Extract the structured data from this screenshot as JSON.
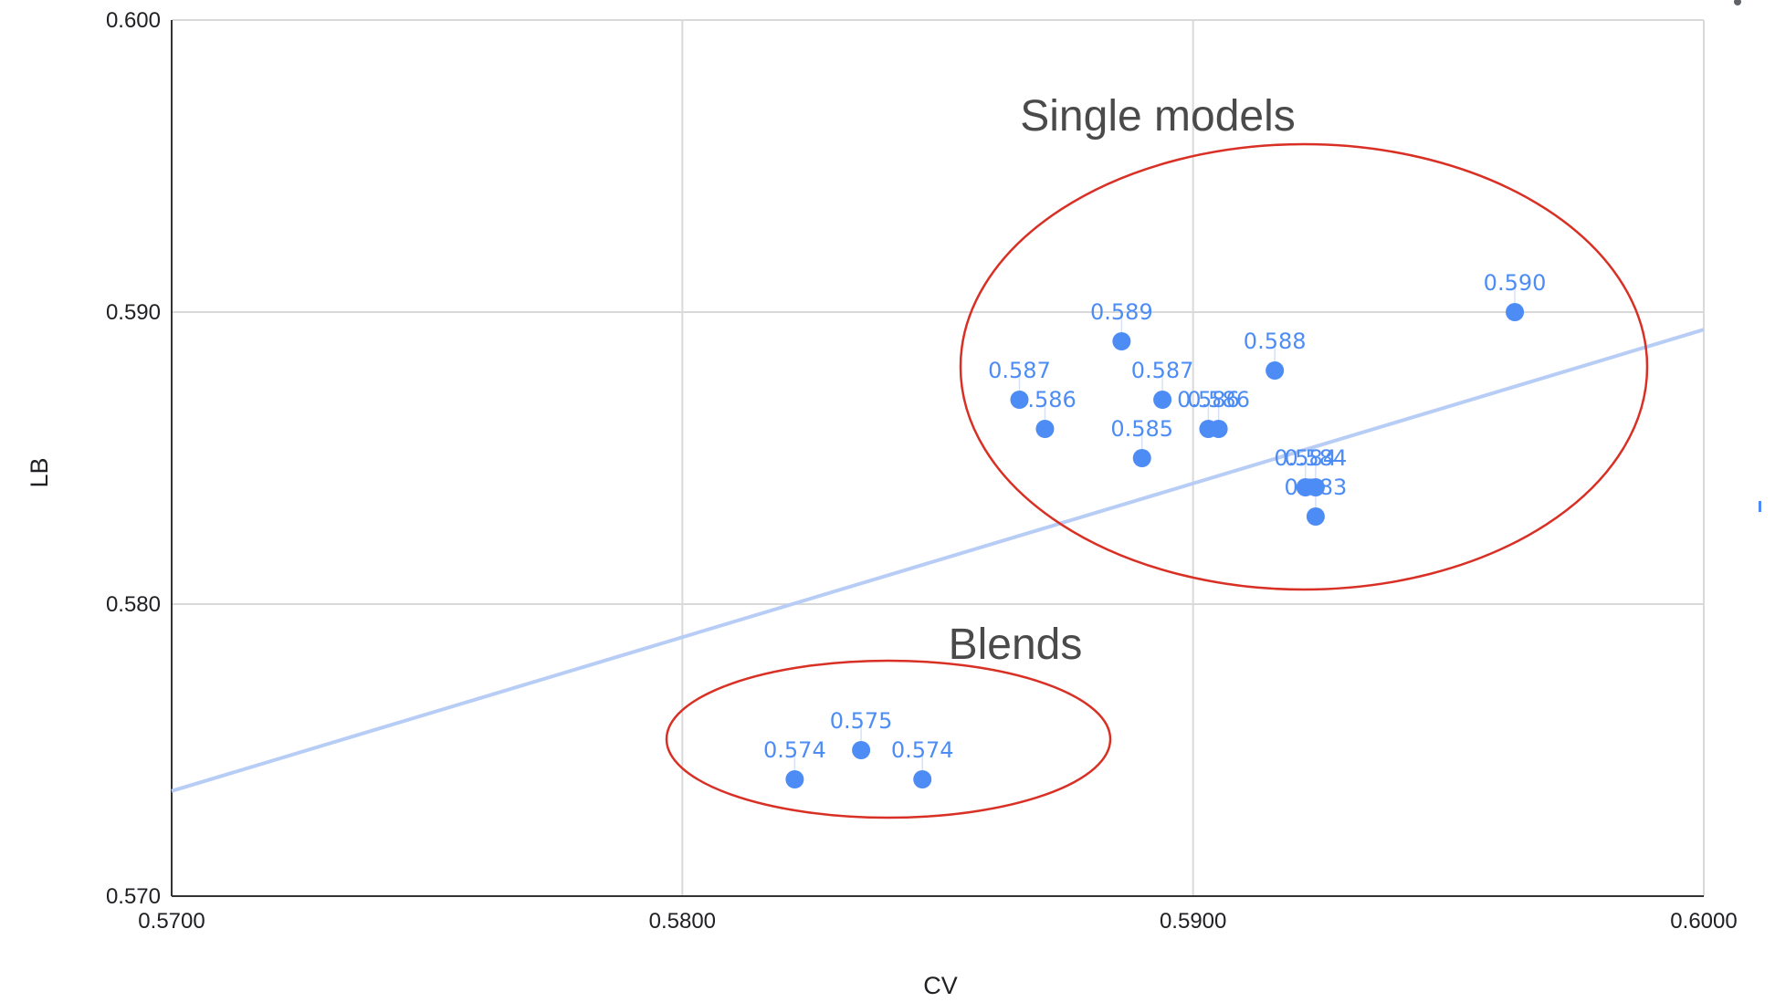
{
  "chart_data": {
    "type": "scatter",
    "xlabel": "CV",
    "ylabel": "LB",
    "xlim": [
      0.57,
      0.6
    ],
    "ylim": [
      0.57,
      0.6
    ],
    "x_ticks": [
      "0.5700",
      "0.5800",
      "0.5900",
      "0.6000"
    ],
    "y_ticks": [
      "0.570",
      "0.580",
      "0.590",
      "0.600"
    ],
    "grid": true,
    "legend": "none",
    "point_color": "#4d8cf5",
    "trendline": {
      "type": "linear",
      "color": "#b7cdf6",
      "x": [
        0.57,
        0.6
      ],
      "y": [
        0.5736,
        0.5894
      ]
    },
    "points": [
      {
        "x": 0.5822,
        "y": 0.574,
        "label": "0.574"
      },
      {
        "x": 0.5835,
        "y": 0.575,
        "label": "0.575"
      },
      {
        "x": 0.5847,
        "y": 0.574,
        "label": "0.574"
      },
      {
        "x": 0.5866,
        "y": 0.587,
        "label": "0.587"
      },
      {
        "x": 0.5871,
        "y": 0.586,
        "label": "0.586"
      },
      {
        "x": 0.5886,
        "y": 0.589,
        "label": "0.589"
      },
      {
        "x": 0.589,
        "y": 0.585,
        "label": "0.585"
      },
      {
        "x": 0.5894,
        "y": 0.587,
        "label": "0.587"
      },
      {
        "x": 0.5903,
        "y": 0.586,
        "label": "0.586"
      },
      {
        "x": 0.5905,
        "y": 0.586,
        "label": "0.586"
      },
      {
        "x": 0.5916,
        "y": 0.588,
        "label": "0.588"
      },
      {
        "x": 0.5922,
        "y": 0.584,
        "label": "0.584"
      },
      {
        "x": 0.5924,
        "y": 0.584,
        "label": "0.584"
      },
      {
        "x": 0.5924,
        "y": 0.583,
        "label": "0.583"
      },
      {
        "x": 0.5963,
        "y": 0.59,
        "label": "0.590"
      }
    ],
    "annotations": [
      {
        "text": "Single models",
        "color": "#d93025"
      },
      {
        "text": "Blends",
        "color": "#d93025"
      }
    ]
  }
}
